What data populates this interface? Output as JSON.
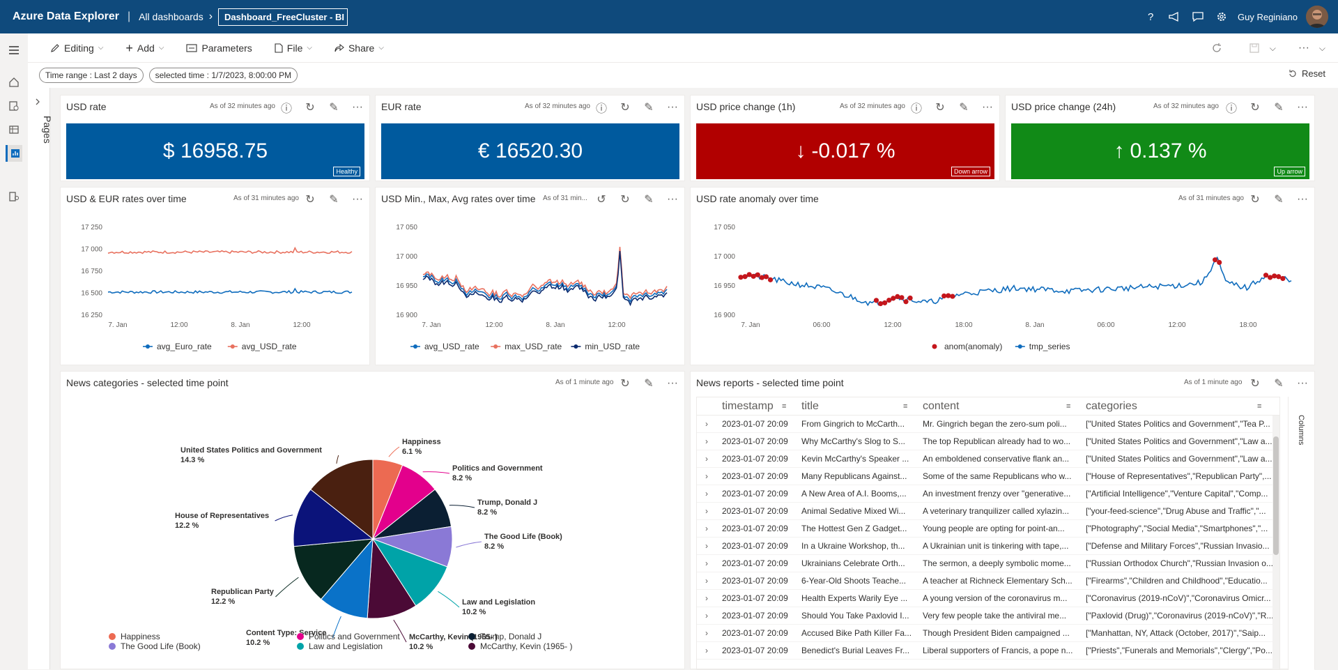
{
  "app": {
    "title": "Azure Data Explorer",
    "breadcrumb_root": "All dashboards",
    "breadcrumb_current": "Dashboard_FreeCluster - BI",
    "user_name": "Guy Reginiano"
  },
  "toolbar": {
    "editing": "Editing",
    "add": "Add",
    "parameters": "Parameters",
    "file": "File",
    "share": "Share"
  },
  "filters": {
    "time_range": "Time range : Last 2 days",
    "selected_time": "selected time : 1/7/2023, 8:00:00 PM",
    "reset": "Reset"
  },
  "pages_label": "Pages",
  "colors": {
    "accent": "#0f4a7c",
    "blue": "#005a9e",
    "red": "#b10000",
    "green": "#118a17"
  },
  "tiles": {
    "usd_rate": {
      "title": "USD rate",
      "meta": "As of 32 minutes ago",
      "value": "$ 16958.75",
      "badge": "Healthy"
    },
    "eur_rate": {
      "title": "EUR rate",
      "meta": "As of 32 minutes ago",
      "value": "€ 16520.30"
    },
    "usd_change_1h": {
      "title": "USD price change (1h)",
      "meta": "As of 32 minutes ago",
      "value": "-0.017 %",
      "arrow": "↓",
      "badge": "Down arrow"
    },
    "usd_change_24h": {
      "title": "USD price change (24h)",
      "meta": "As of 32 minutes ago",
      "value": "0.137 %",
      "arrow": "↑",
      "badge": "Up arrow"
    },
    "rates_over_time": {
      "title": "USD & EUR rates over time",
      "meta": "As of 31 minutes ago"
    },
    "minmaxavg": {
      "title": "USD Min., Max, Avg rates over time",
      "meta": "As of 31 min..."
    },
    "anomaly": {
      "title": "USD rate anomaly over time",
      "meta": "As of 31 minutes ago"
    },
    "news_categories": {
      "title": "News categories - selected time point",
      "meta": "As of 1 minute ago"
    },
    "news_reports": {
      "title": "News reports - selected time point",
      "meta": "As of 1 minute ago",
      "columns_label": "Columns"
    }
  },
  "chart_data": [
    {
      "type": "line",
      "title": "USD & EUR rates over time",
      "ylim": [
        16250,
        17250
      ],
      "yticks": [
        "17 250",
        "17 000",
        "16 750",
        "16 500",
        "16 250"
      ],
      "xticks": [
        "7. Jan",
        "12:00",
        "8. Jan",
        "12:00"
      ],
      "series": [
        {
          "name": "avg_Euro_rate",
          "color": "#0f6cbd",
          "approx_level": 16510
        },
        {
          "name": "avg_USD_rate",
          "color": "#e8715f",
          "approx_level": 16960
        }
      ]
    },
    {
      "type": "line",
      "title": "USD Min., Max, Avg rates over time",
      "ylim": [
        16900,
        17050
      ],
      "yticks": [
        "17 050",
        "17 000",
        "16 950",
        "16 900"
      ],
      "xticks": [
        "7. Jan",
        "12:00",
        "8. Jan",
        "12:00"
      ],
      "series": [
        {
          "name": "avg_USD_rate",
          "color": "#0f6cbd"
        },
        {
          "name": "max_USD_rate",
          "color": "#e8715f"
        },
        {
          "name": "min_USD_rate",
          "color": "#0b2a6e"
        }
      ]
    },
    {
      "type": "line",
      "title": "USD rate anomaly over time",
      "ylim": [
        16900,
        17050
      ],
      "yticks": [
        "17 050",
        "17 000",
        "16 950",
        "16 900"
      ],
      "xticks": [
        "7. Jan",
        "06:00",
        "12:00",
        "18:00",
        "8. Jan",
        "06:00",
        "12:00",
        "18:00"
      ],
      "series": [
        {
          "name": "anom(anomaly)",
          "color": "#c4161c"
        },
        {
          "name": "tmp_series",
          "color": "#0f6cbd"
        }
      ]
    },
    {
      "type": "pie",
      "title": "News categories - selected time point",
      "slices": [
        {
          "label": "Happiness",
          "pct": "6.1 %",
          "value": 6.1,
          "color": "#ec6a52"
        },
        {
          "label": "Politics and Government",
          "pct": "8.2 %",
          "value": 8.2,
          "color": "#e3008c"
        },
        {
          "label": "Trump, Donald J",
          "pct": "8.2 %",
          "value": 8.2,
          "color": "#0b1f33"
        },
        {
          "label": "The Good Life (Book)",
          "pct": "8.2 %",
          "value": 8.2,
          "color": "#8a79d6"
        },
        {
          "label": "Law and Legislation",
          "pct": "10.2 %",
          "value": 10.2,
          "color": "#00a3a8"
        },
        {
          "label": "McCarthy, Kevin (1965- )",
          "pct": "10.2 %",
          "value": 10.2,
          "color": "#4b0a36"
        },
        {
          "label": "Content Type: Service",
          "pct": "10.2 %",
          "value": 10.2,
          "color": "#0a72c8"
        },
        {
          "label": "Republican Party",
          "pct": "12.2 %",
          "value": 12.2,
          "color": "#07281f"
        },
        {
          "label": "House of Representatives",
          "pct": "12.2 %",
          "value": 12.2,
          "color": "#0b137a"
        },
        {
          "label": "United States Politics and Government",
          "pct": "14.3 %",
          "value": 14.3,
          "color": "#4a2010"
        }
      ]
    }
  ],
  "news_table": {
    "columns": [
      "timestamp",
      "title",
      "content",
      "categories"
    ],
    "rows": [
      [
        "2023-01-07 20:09",
        "From Gingrich to McCarth...",
        "Mr. Gingrich began the zero-sum poli...",
        "[\"United States Politics and Government\",\"Tea P..."
      ],
      [
        "2023-01-07 20:09",
        "Why McCarthy's Slog to S...",
        "The top Republican already had to wo...",
        "[\"United States Politics and Government\",\"Law a..."
      ],
      [
        "2023-01-07 20:09",
        "Kevin McCarthy's Speaker ...",
        "An emboldened conservative flank an...",
        "[\"United States Politics and Government\",\"Law a..."
      ],
      [
        "2023-01-07 20:09",
        "Many Republicans Against...",
        "Some of the same Republicans who w...",
        "[\"House of Representatives\",\"Republican Party\",..."
      ],
      [
        "2023-01-07 20:09",
        "A New Area of A.I. Booms,...",
        "An investment frenzy over \"generative...",
        "[\"Artificial Intelligence\",\"Venture Capital\",\"Comp..."
      ],
      [
        "2023-01-07 20:09",
        "Animal Sedative Mixed Wi...",
        "A veterinary tranquilizer called xylazin...",
        "[\"your-feed-science\",\"Drug Abuse and Traffic\",\"..."
      ],
      [
        "2023-01-07 20:09",
        "The Hottest Gen Z Gadget...",
        "Young people are opting for point-an...",
        "[\"Photography\",\"Social Media\",\"Smartphones\",\"..."
      ],
      [
        "2023-01-07 20:09",
        "In a Ukraine Workshop, th...",
        "A Ukrainian unit is tinkering with tape,...",
        "[\"Defense and Military Forces\",\"Russian Invasio..."
      ],
      [
        "2023-01-07 20:09",
        "Ukrainians Celebrate Orth...",
        "The sermon, a deeply symbolic mome...",
        "[\"Russian Orthodox Church\",\"Russian Invasion o..."
      ],
      [
        "2023-01-07 20:09",
        "6-Year-Old Shoots Teache...",
        "A teacher at Richneck Elementary Sch...",
        "[\"Firearms\",\"Children and Childhood\",\"Educatio..."
      ],
      [
        "2023-01-07 20:09",
        "Health Experts Warily Eye ...",
        "A young version of the coronavirus m...",
        "[\"Coronavirus (2019-nCoV)\",\"Coronavirus Omicr..."
      ],
      [
        "2023-01-07 20:09",
        "Should You Take Paxlovid I...",
        "Very few people take the antiviral me...",
        "[\"Paxlovid (Drug)\",\"Coronavirus (2019-nCoV)\",\"R..."
      ],
      [
        "2023-01-07 20:09",
        "Accused Bike Path Killer Fa...",
        "Though President Biden campaigned ...",
        "[\"Manhattan, NY, Attack (October, 2017)\",\"Saip..."
      ],
      [
        "2023-01-07 20:09",
        "Benedict's Burial Leaves Fr...",
        "Liberal supporters of Francis, a pope n...",
        "[\"Priests\",\"Funerals and Memorials\",\"Clergy\",\"Po..."
      ]
    ]
  }
}
